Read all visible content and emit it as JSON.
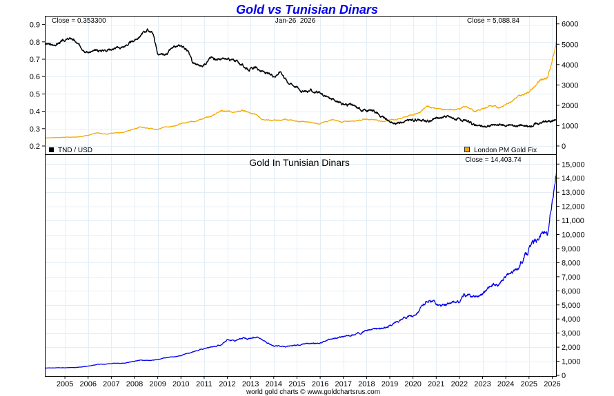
{
  "chart_data": [
    {
      "type": "line",
      "title": "Gold vs Tunisian Dinars",
      "date_label": "Jan-26  2026",
      "xlim": [
        2004.15,
        2026.18
      ],
      "x_ticks": [
        "2005",
        "2006",
        "2007",
        "2008",
        "2009",
        "2010",
        "2011",
        "2012",
        "2013",
        "2014",
        "2015",
        "2016",
        "2017",
        "2018",
        "2019",
        "2020",
        "2021",
        "2022",
        "2023",
        "2024",
        "2025",
        "2026"
      ],
      "left_axis": {
        "ylim": [
          0.15,
          0.94
        ],
        "ticks": [
          "0.9",
          "0.8",
          "0.7",
          "0.6",
          "0.5",
          "0.4",
          "0.3",
          "0.2"
        ],
        "tick_values": [
          0.9,
          0.8,
          0.7,
          0.6,
          0.5,
          0.4,
          0.3,
          0.2
        ]
      },
      "right_axis": {
        "ylim": [
          -150,
          6250
        ],
        "ticks": [
          "6000",
          "5000",
          "4000",
          "3000",
          "2000",
          "1000",
          "0"
        ],
        "tick_values": [
          6000,
          5000,
          4000,
          3000,
          2000,
          1000,
          0
        ]
      },
      "close_left": "Close = 0.353300",
      "close_right": "Close = 5,088.84",
      "legend_left": "TND / USD",
      "legend_right": "London PM Gold Fix",
      "grid": true,
      "series": [
        {
          "name": "TND / USD",
          "axis": "left",
          "color": "#000000",
          "x": [
            2004.15,
            2004.5,
            2005.0,
            2005.3,
            2005.6,
            2006.0,
            2006.5,
            2007.0,
            2007.5,
            2007.9,
            2008.2,
            2008.55,
            2008.8,
            2009.0,
            2009.3,
            2009.6,
            2010.0,
            2010.3,
            2010.5,
            2010.9,
            2011.3,
            2011.6,
            2012.0,
            2012.4,
            2012.9,
            2013.2,
            2013.5,
            2014.0,
            2014.3,
            2014.6,
            2015.0,
            2015.3,
            2015.6,
            2016.0,
            2016.5,
            2017.0,
            2017.3,
            2017.6,
            2018.0,
            2018.3,
            2018.6,
            2018.9,
            2019.2,
            2019.6,
            2020.0,
            2020.3,
            2020.7,
            2021.0,
            2021.5,
            2022.0,
            2022.3,
            2022.7,
            2023.0,
            2023.5,
            2024.0,
            2024.5,
            2025.0,
            2025.3,
            2025.7,
            2026.18
          ],
          "y": [
            0.79,
            0.78,
            0.81,
            0.82,
            0.78,
            0.74,
            0.75,
            0.76,
            0.77,
            0.8,
            0.83,
            0.87,
            0.85,
            0.73,
            0.72,
            0.76,
            0.78,
            0.75,
            0.68,
            0.66,
            0.71,
            0.7,
            0.7,
            0.69,
            0.64,
            0.65,
            0.63,
            0.6,
            0.63,
            0.57,
            0.54,
            0.51,
            0.52,
            0.5,
            0.47,
            0.44,
            0.44,
            0.42,
            0.4,
            0.41,
            0.37,
            0.35,
            0.33,
            0.34,
            0.35,
            0.35,
            0.34,
            0.36,
            0.37,
            0.35,
            0.34,
            0.32,
            0.31,
            0.32,
            0.32,
            0.32,
            0.31,
            0.33,
            0.34,
            0.353
          ]
        },
        {
          "name": "London PM Gold Fix",
          "axis": "right",
          "color": "#f5a900",
          "x": [
            2004.15,
            2004.5,
            2005.0,
            2005.5,
            2006.0,
            2006.4,
            2006.8,
            2007.0,
            2007.5,
            2008.0,
            2008.2,
            2008.7,
            2008.9,
            2009.3,
            2009.6,
            2010.0,
            2010.5,
            2011.0,
            2011.3,
            2011.7,
            2012.0,
            2012.3,
            2012.7,
            2012.9,
            2013.3,
            2013.5,
            2014.0,
            2014.5,
            2015.0,
            2015.5,
            2016.0,
            2016.5,
            2016.9,
            2017.5,
            2018.0,
            2018.3,
            2018.7,
            2019.0,
            2019.3,
            2019.6,
            2020.0,
            2020.3,
            2020.6,
            2020.9,
            2021.2,
            2021.6,
            2022.0,
            2022.2,
            2022.7,
            2022.9,
            2023.3,
            2023.7,
            2024.0,
            2024.4,
            2024.7,
            2025.0,
            2025.3,
            2025.5,
            2025.8,
            2026.0,
            2026.18
          ],
          "y": [
            400,
            410,
            430,
            440,
            530,
            640,
            580,
            640,
            660,
            850,
            930,
            880,
            800,
            930,
            960,
            1100,
            1200,
            1360,
            1450,
            1750,
            1700,
            1650,
            1750,
            1680,
            1500,
            1300,
            1250,
            1300,
            1220,
            1170,
            1100,
            1300,
            1180,
            1250,
            1320,
            1310,
            1200,
            1290,
            1300,
            1410,
            1550,
            1650,
            2000,
            1850,
            1800,
            1780,
            1820,
            1950,
            1700,
            1780,
            1980,
            1900,
            2030,
            2350,
            2500,
            2700,
            3000,
            3300,
            3350,
            4200,
            5088.84
          ]
        }
      ]
    },
    {
      "type": "line",
      "title": "Gold In Tunisian Dinars",
      "close_label": "Close = 14,403.74",
      "ylim": [
        0,
        15000
      ],
      "y_ticks": [
        "15,000",
        "14,000",
        "13,000",
        "12,000",
        "11,000",
        "10,000",
        "9,000",
        "8,000",
        "7,000",
        "6,000",
        "5,000",
        "4,000",
        "3,000",
        "2,000",
        "1,000",
        "0"
      ],
      "y_tick_values": [
        15000,
        14000,
        13000,
        12000,
        11000,
        10000,
        9000,
        8000,
        7000,
        6000,
        5000,
        4000,
        3000,
        2000,
        1000,
        0
      ],
      "grid": true,
      "series": [
        {
          "name": "Gold In Tunisian Dinars",
          "color": "#0000ee",
          "x": [
            2004.15,
            2004.5,
            2005.0,
            2005.5,
            2006.0,
            2006.4,
            2006.8,
            2007.0,
            2007.5,
            2008.0,
            2008.2,
            2008.7,
            2009.0,
            2009.3,
            2009.6,
            2010.0,
            2010.5,
            2011.0,
            2011.3,
            2011.7,
            2012.0,
            2012.3,
            2012.7,
            2012.9,
            2013.3,
            2013.5,
            2014.0,
            2014.5,
            2015.0,
            2015.5,
            2016.0,
            2016.5,
            2016.9,
            2017.5,
            2018.0,
            2018.3,
            2018.7,
            2019.0,
            2019.3,
            2019.6,
            2020.0,
            2020.3,
            2020.6,
            2020.9,
            2021.2,
            2021.6,
            2022.0,
            2022.2,
            2022.6,
            2022.9,
            2023.3,
            2023.7,
            2024.0,
            2024.4,
            2024.7,
            2025.0,
            2025.3,
            2025.6,
            2025.8,
            2026.0,
            2026.18
          ],
          "y": [
            520,
            530,
            540,
            560,
            650,
            780,
            800,
            850,
            860,
            1000,
            1080,
            1050,
            1100,
            1250,
            1300,
            1400,
            1650,
            1900,
            2000,
            2150,
            2550,
            2450,
            2650,
            2600,
            2700,
            2500,
            2100,
            2050,
            2150,
            2250,
            2300,
            2600,
            2700,
            2900,
            3200,
            3250,
            3350,
            3500,
            3800,
            4100,
            4200,
            4700,
            5300,
            5200,
            4900,
            5100,
            5200,
            5700,
            5600,
            5700,
            6300,
            6400,
            7000,
            7400,
            8100,
            9000,
            9600,
            10200,
            9800,
            12500,
            14403.74
          ]
        }
      ]
    }
  ],
  "footer": "world gold charts © www.goldchartsrus.com"
}
